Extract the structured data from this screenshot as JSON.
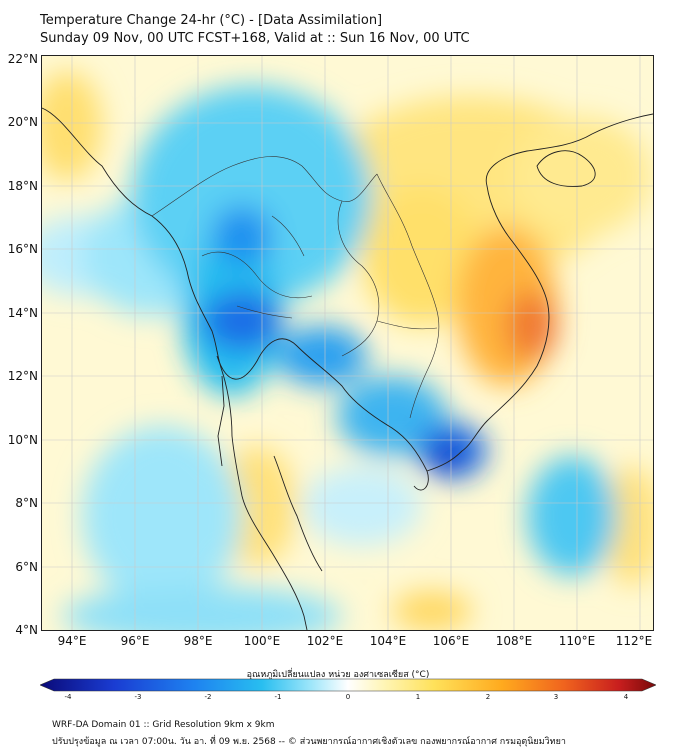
{
  "title": {
    "line1": "Temperature Change 24-hr (°C) - [Data Assimilation]",
    "line2": "Sunday 09 Nov, 00 UTC FCST+168, Valid at :: Sun 16 Nov, 00 UTC"
  },
  "map": {
    "lat_labels": [
      "22°N",
      "20°N",
      "18°N",
      "16°N",
      "14°N",
      "12°N",
      "10°N",
      "8°N",
      "6°N",
      "4°N"
    ],
    "lon_labels": [
      "94°E",
      "96°E",
      "98°E",
      "100°E",
      "102°E",
      "104°E",
      "106°E",
      "108°E",
      "110°E",
      "112°E"
    ],
    "lat_range": [
      4,
      22.2
    ],
    "lon_range": [
      93.1,
      112.5
    ],
    "grid": true,
    "field_anomalies": [
      {
        "region": "central Thailand / Bangkok",
        "value": -2.5
      },
      {
        "region": "northern Thailand highlands",
        "value": -2.0
      },
      {
        "region": "southern Vietnam / Mekong delta",
        "value": -3.0
      },
      {
        "region": "Cambodia / Tonle Sap",
        "value": -1.8
      },
      {
        "region": "central Vietnam coast",
        "value": 2.5
      },
      {
        "region": "central Laos",
        "value": 1.2
      },
      {
        "region": "southern Thai peninsula",
        "value": 0.8
      },
      {
        "region": "South China Sea",
        "value": -1.5
      }
    ]
  },
  "colorbar": {
    "label": "อุณหภูมิเปลี่ยนแปลง หน่วย องศาเซลเซียส (°C)",
    "ticks": [
      "-4",
      "-3",
      "-2",
      "-1",
      "0",
      "1",
      "2",
      "3",
      "4"
    ],
    "range": [
      -4,
      4
    ],
    "colors": [
      "#0a0a78",
      "#1a3cd2",
      "#1e82f0",
      "#28bef0",
      "#9ee6fa",
      "#ffffff",
      "#fff5b4",
      "#ffe15a",
      "#ffaa1e",
      "#f0641e",
      "#c81e1e",
      "#780a0a"
    ]
  },
  "footer": {
    "line1": "WRF-DA Domain 01 :: Grid Resolution 9km x 9km",
    "line2": "ปรับปรุงข้อมูล ณ เวลา 07:00น. วัน อา. ที่ 09 พ.ย. 2568 -- © ส่วนพยากรณ์อากาศเชิงตัวเลข กองพยากรณ์อากาศ กรมอุตุนิยมวิทยา"
  }
}
